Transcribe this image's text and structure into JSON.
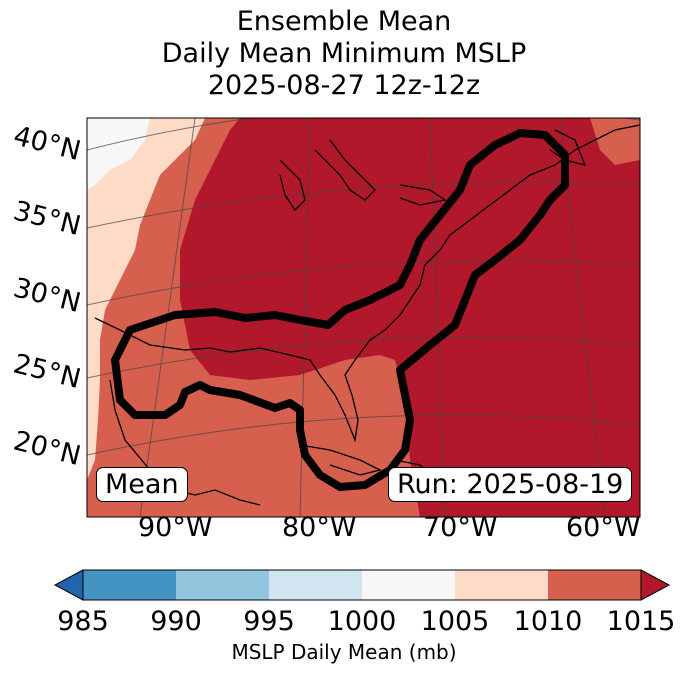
{
  "title": {
    "line1": "Ensemble Mean",
    "line2": "Daily Mean Minimum MSLP",
    "line3": "2025-08-27 12z-12z"
  },
  "lat_labels": [
    "40°N",
    "35°N",
    "30°N",
    "25°N",
    "20°N"
  ],
  "lon_labels": [
    "90°W",
    "80°W",
    "70°W",
    "60°W"
  ],
  "boxes": {
    "left": "Mean",
    "right": "Run: 2025-08-19"
  },
  "colorbar": {
    "ticks": [
      "985",
      "990",
      "995",
      "1000",
      "1005",
      "1010",
      "1015"
    ],
    "label": "MSLP Daily Mean (mb)",
    "colors": [
      "#2166ac",
      "#4393c3",
      "#92c5de",
      "#d1e5f0",
      "#f7f7f7",
      "#fddbc7",
      "#d6604d",
      "#b2182b"
    ],
    "extend": "both"
  }
}
